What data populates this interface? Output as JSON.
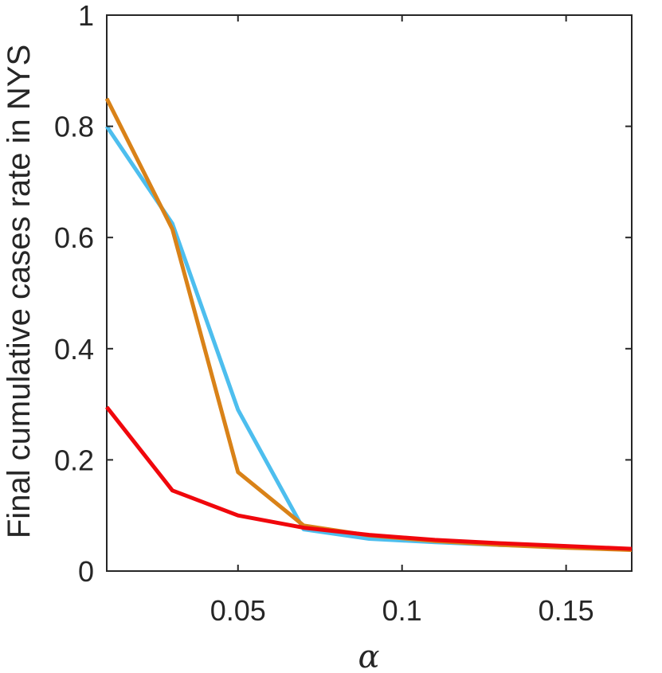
{
  "chart_data": {
    "type": "line",
    "xlabel": "α",
    "ylabel": "Final cumulative cases rate in NYS",
    "xlim": [
      0.01,
      0.17
    ],
    "ylim": [
      0,
      1
    ],
    "x_ticks": [
      0.05,
      0.1,
      0.15
    ],
    "x_tick_labels": [
      "0.05",
      "0.1",
      "0.15"
    ],
    "y_ticks": [
      0,
      0.2,
      0.4,
      0.6,
      0.8,
      1
    ],
    "y_tick_labels": [
      "0",
      "0.2",
      "0.4",
      "0.6",
      "0.8",
      "1"
    ],
    "grid": false,
    "legend": "none",
    "x": [
      0.01,
      0.03,
      0.05,
      0.07,
      0.09,
      0.11,
      0.13,
      0.15,
      0.17
    ],
    "series": [
      {
        "color": "#4DBEEE",
        "values": [
          0.8,
          0.625,
          0.29,
          0.075,
          0.058,
          0.052,
          0.047,
          0.043,
          0.039
        ]
      },
      {
        "color": "#D98218",
        "values": [
          0.85,
          0.615,
          0.178,
          0.082,
          0.064,
          0.054,
          0.047,
          0.042,
          0.038
        ]
      },
      {
        "color": "#F0070C",
        "values": [
          0.295,
          0.145,
          0.1,
          0.078,
          0.065,
          0.056,
          0.05,
          0.045,
          0.04
        ]
      }
    ]
  }
}
